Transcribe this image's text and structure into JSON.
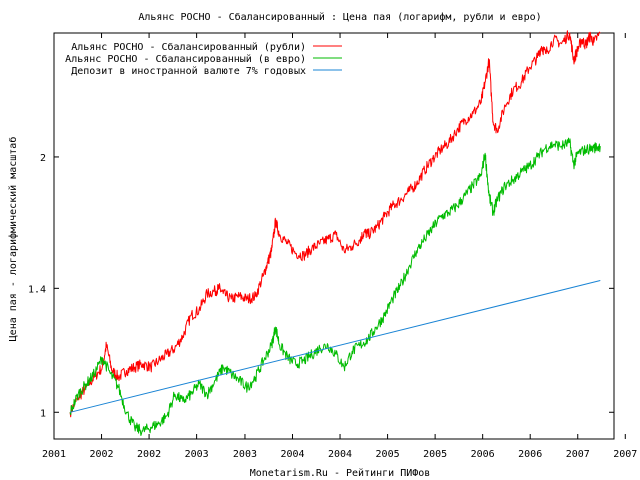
{
  "chart_data": {
    "type": "line",
    "title": "Альянс РОСНО - Сбалансированный : Цена пая (логарифм, рубли и евро)",
    "xlabel": "Monetarism.Ru - Рейтинги ПИФов",
    "ylabel": "Цена пая - логарифмический масштаб",
    "y_scale": "log",
    "ylim": [
      0.93,
      2.8
    ],
    "xlim": [
      2001.0,
      2007.95
    ],
    "grid": false,
    "legend_position": "top-left",
    "x_ticks": [
      {
        "x": 2001.0,
        "label": "2001"
      },
      {
        "x": 2001.59,
        "label": "2002"
      },
      {
        "x": 2002.18,
        "label": "2002"
      },
      {
        "x": 2002.77,
        "label": "2003"
      },
      {
        "x": 2003.37,
        "label": "2003"
      },
      {
        "x": 2003.96,
        "label": "2004"
      },
      {
        "x": 2004.55,
        "label": "2004"
      },
      {
        "x": 2005.14,
        "label": "2005"
      },
      {
        "x": 2005.73,
        "label": "2005"
      },
      {
        "x": 2006.32,
        "label": "2006"
      },
      {
        "x": 2006.91,
        "label": "2006"
      },
      {
        "x": 2007.5,
        "label": "2007"
      },
      {
        "x": 2008.09,
        "label": "2007"
      }
    ],
    "y_ticks": [
      {
        "y": 1.0,
        "label": "1"
      },
      {
        "y": 1.4,
        "label": "1.4"
      },
      {
        "y": 2.0,
        "label": "2"
      }
    ],
    "series": [
      {
        "name": "Альянс РОСНО - Сбалансированный (рубли)",
        "color": "#ff0000",
        "x": [
          2001.2,
          2001.3,
          2001.4,
          2001.5,
          2001.6,
          2001.65,
          2001.72,
          2001.8,
          2001.9,
          2002.0,
          2002.1,
          2002.2,
          2002.3,
          2002.4,
          2002.5,
          2002.6,
          2002.7,
          2002.8,
          2002.9,
          2003.0,
          2003.05,
          2003.1,
          2003.2,
          2003.3,
          2003.4,
          2003.5,
          2003.6,
          2003.65,
          2003.7,
          2003.75,
          2003.8,
          2003.9,
          2004.0,
          2004.1,
          2004.2,
          2004.3,
          2004.4,
          2004.5,
          2004.6,
          2004.7,
          2004.8,
          2004.85,
          2004.9,
          2005.0,
          2005.1,
          2005.2,
          2005.3,
          2005.4,
          2005.5,
          2005.6,
          2005.7,
          2005.8,
          2005.9,
          2006.0,
          2006.1,
          2006.2,
          2006.3,
          2006.35,
          2006.4,
          2006.45,
          2006.5,
          2006.6,
          2006.7,
          2006.8,
          2006.9,
          2007.0,
          2007.05,
          2007.1,
          2007.2,
          2007.3,
          2007.4,
          2007.45,
          2007.5,
          2007.55,
          2007.6,
          2007.65,
          2007.7,
          2007.78
        ],
        "values": [
          1.0,
          1.04,
          1.07,
          1.1,
          1.13,
          1.2,
          1.12,
          1.1,
          1.12,
          1.13,
          1.14,
          1.13,
          1.15,
          1.17,
          1.19,
          1.23,
          1.3,
          1.32,
          1.38,
          1.39,
          1.4,
          1.38,
          1.36,
          1.37,
          1.36,
          1.37,
          1.45,
          1.5,
          1.55,
          1.68,
          1.62,
          1.58,
          1.54,
          1.53,
          1.56,
          1.58,
          1.6,
          1.62,
          1.55,
          1.57,
          1.6,
          1.63,
          1.62,
          1.65,
          1.7,
          1.75,
          1.78,
          1.82,
          1.86,
          1.93,
          1.99,
          2.04,
          2.08,
          2.15,
          2.21,
          2.25,
          2.32,
          2.45,
          2.6,
          2.2,
          2.15,
          2.3,
          2.4,
          2.45,
          2.55,
          2.62,
          2.7,
          2.65,
          2.75,
          2.72,
          2.8,
          2.6,
          2.68,
          2.75,
          2.71,
          2.78,
          2.73,
          2.8
        ]
      },
      {
        "name": "Альянс РОСНО - Сбалансированный (в евро)",
        "color": "#00bb00",
        "x": [
          2001.2,
          2001.3,
          2001.4,
          2001.5,
          2001.6,
          2001.7,
          2001.8,
          2001.9,
          2002.0,
          2002.1,
          2002.2,
          2002.3,
          2002.4,
          2002.5,
          2002.6,
          2002.7,
          2002.8,
          2002.9,
          2003.0,
          2003.1,
          2003.2,
          2003.3,
          2003.4,
          2003.5,
          2003.6,
          2003.7,
          2003.75,
          2003.8,
          2003.9,
          2004.0,
          2004.1,
          2004.2,
          2004.3,
          2004.4,
          2004.5,
          2004.6,
          2004.7,
          2004.8,
          2004.9,
          2005.0,
          2005.1,
          2005.2,
          2005.3,
          2005.4,
          2005.5,
          2005.6,
          2005.7,
          2005.8,
          2005.9,
          2006.0,
          2006.1,
          2006.2,
          2006.3,
          2006.35,
          2006.4,
          2006.45,
          2006.5,
          2006.6,
          2006.7,
          2006.8,
          2006.9,
          2007.0,
          2007.1,
          2007.2,
          2007.3,
          2007.4,
          2007.45,
          2007.5,
          2007.6,
          2007.7,
          2007.78
        ],
        "values": [
          1.0,
          1.05,
          1.08,
          1.11,
          1.16,
          1.11,
          1.07,
          1.0,
          0.96,
          0.95,
          0.96,
          0.97,
          0.99,
          1.05,
          1.03,
          1.05,
          1.08,
          1.05,
          1.09,
          1.13,
          1.11,
          1.09,
          1.07,
          1.1,
          1.15,
          1.2,
          1.26,
          1.2,
          1.16,
          1.14,
          1.15,
          1.17,
          1.19,
          1.2,
          1.17,
          1.13,
          1.18,
          1.2,
          1.22,
          1.26,
          1.3,
          1.36,
          1.41,
          1.48,
          1.55,
          1.6,
          1.65,
          1.7,
          1.72,
          1.75,
          1.8,
          1.85,
          1.9,
          2.02,
          1.8,
          1.72,
          1.78,
          1.85,
          1.88,
          1.92,
          1.95,
          2.0,
          2.05,
          2.07,
          2.06,
          2.08,
          1.96,
          2.02,
          2.04,
          2.05,
          2.06
        ]
      },
      {
        "name": "Депозит в иностранной валюте 7% годовых",
        "color": "#1a84d4",
        "x": [
          2001.2,
          2007.78
        ],
        "values": [
          1.0,
          1.43
        ]
      }
    ]
  }
}
